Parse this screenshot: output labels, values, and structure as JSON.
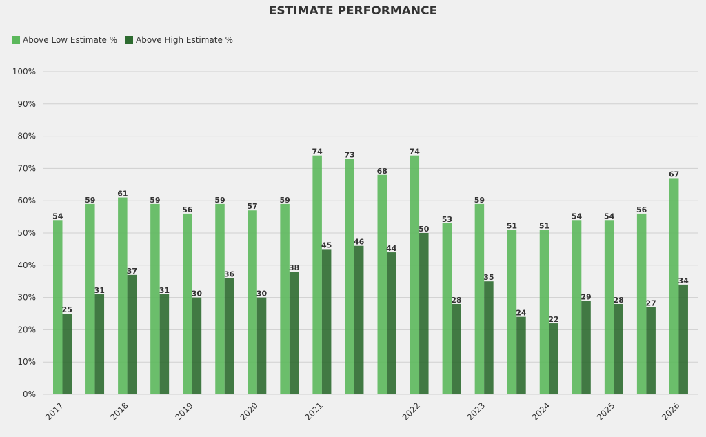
{
  "chart_data": {
    "type": "bar",
    "title": "ESTIMATE PERFORMANCE",
    "xlabel": "",
    "ylabel": "",
    "ylim": [
      0,
      100
    ],
    "yticks": [
      "0%",
      "10%",
      "20%",
      "30%",
      "40%",
      "50%",
      "60%",
      "70%",
      "80%",
      "90%",
      "100%"
    ],
    "legend_position": "top-left",
    "grid": true,
    "x_tick_labels": [
      "2017",
      "2018",
      "2019",
      "2020",
      "2021",
      "2022",
      "2023",
      "2024",
      "2025",
      "2026"
    ],
    "x_tick_label_groups": [
      0,
      2,
      4,
      6,
      8,
      11,
      13,
      15,
      17,
      19
    ],
    "series": [
      {
        "name": "Above Low Estimate %",
        "color": "#5cb85c",
        "values": [
          54,
          59,
          61,
          59,
          56,
          59,
          57,
          59,
          74,
          73,
          68,
          74,
          53,
          59,
          51,
          51,
          54,
          54,
          56,
          67
        ]
      },
      {
        "name": "Above High Estimate %",
        "color": "#2e6b30",
        "values": [
          25,
          31,
          37,
          31,
          30,
          36,
          30,
          38,
          45,
          46,
          44,
          50,
          28,
          35,
          24,
          22,
          29,
          28,
          27,
          34
        ]
      }
    ],
    "data_labels": {
      "low": [
        "54",
        "59",
        "61",
        "59",
        "56",
        "59",
        "57",
        "59",
        "74",
        "73",
        "68",
        "74",
        "53",
        "59",
        "51",
        "51",
        "54",
        "54",
        "56",
        "67"
      ],
      "high": [
        "25",
        "31",
        "37",
        "31",
        "30",
        "36",
        "30",
        "38",
        "45",
        "46",
        "44",
        "50",
        "28",
        "35",
        "24",
        "22",
        "29",
        "28",
        "27",
        "34"
      ]
    }
  }
}
